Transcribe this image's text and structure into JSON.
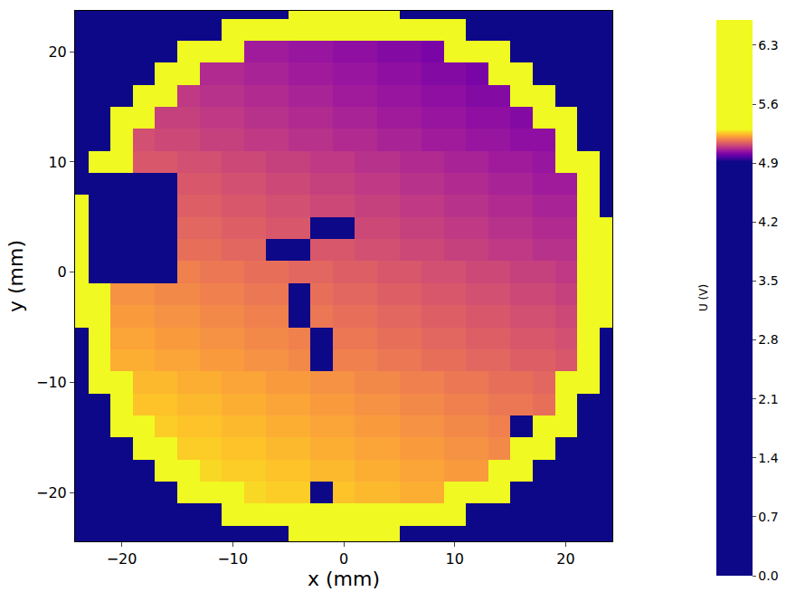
{
  "chart_data": {
    "type": "heatmap",
    "x_label": "x (mm)",
    "y_label": "y (mm)",
    "colorbar_label": "U (V)",
    "xlim": [
      -24.2,
      24.2
    ],
    "ylim": [
      -24.4,
      23.7
    ],
    "xticks": [
      -20,
      -10,
      0,
      10,
      20
    ],
    "yticks": [
      -20,
      -10,
      0,
      10,
      20
    ],
    "colorbar_range": [
      0,
      6.6
    ],
    "colorbar_ticks": [
      {
        "value": 0,
        "label": "0.0"
      },
      0.7,
      1.4,
      2.1,
      2.8,
      3.5,
      4.2,
      4.9,
      5.6,
      6.3
    ],
    "x": [
      -24,
      -22,
      -20,
      -18,
      -16,
      -14,
      -12,
      -10,
      -8,
      -6,
      -4,
      -2,
      0,
      2,
      4,
      6,
      8,
      10,
      12,
      14,
      16,
      18,
      20,
      22,
      24
    ],
    "y": [
      -24,
      -22,
      -20,
      -18,
      -16,
      -14,
      -12,
      -10,
      -8,
      -6,
      -4,
      -2,
      0,
      2,
      4,
      6,
      8,
      10,
      12,
      14,
      16,
      18,
      20,
      22,
      24
    ],
    "z": [
      [
        0,
        0,
        0,
        0,
        0,
        0,
        0,
        0,
        0,
        0,
        6,
        6,
        6,
        6,
        6,
        0,
        0,
        0,
        0,
        0,
        0,
        0,
        0,
        0,
        0
      ],
      [
        0,
        0,
        0,
        0,
        0,
        0,
        0,
        6,
        6,
        6,
        6,
        6,
        6,
        6,
        6,
        6,
        6,
        6,
        0,
        0,
        0,
        0,
        0,
        0,
        0
      ],
      [
        0,
        0,
        0,
        0,
        0,
        6,
        6,
        6,
        5.27,
        5.26,
        5.26,
        4.7,
        5.25,
        5.24,
        5.24,
        5.23,
        5.23,
        6,
        6,
        6,
        0,
        0,
        0,
        0,
        0
      ],
      [
        0,
        0,
        0,
        0,
        6,
        6,
        5.27,
        5.26,
        5.26,
        5.25,
        5.25,
        5.24,
        5.24,
        5.23,
        5.23,
        5.22,
        5.22,
        5.21,
        5.21,
        6,
        6,
        0,
        0,
        0,
        0
      ],
      [
        0,
        0,
        0,
        6,
        6,
        5.26,
        5.26,
        5.25,
        5.25,
        5.24,
        5.24,
        5.23,
        5.23,
        5.22,
        5.22,
        5.21,
        5.21,
        5.2,
        5.2,
        5.19,
        6,
        6,
        0,
        0,
        0
      ],
      [
        0,
        0,
        6,
        6,
        5.26,
        5.25,
        5.25,
        5.24,
        5.24,
        5.23,
        5.23,
        5.22,
        5.22,
        5.21,
        5.21,
        5.2,
        5.2,
        5.19,
        5.19,
        5.18,
        4.7,
        6,
        6,
        0,
        0
      ],
      [
        0,
        0,
        6,
        5.25,
        5.25,
        5.24,
        5.24,
        5.23,
        5.23,
        5.22,
        5.22,
        5.21,
        5.21,
        5.2,
        5.2,
        5.19,
        5.19,
        5.18,
        5.18,
        5.17,
        5.17,
        5.16,
        6,
        0,
        0
      ],
      [
        0,
        6,
        6,
        5.24,
        5.24,
        5.23,
        5.23,
        5.22,
        5.22,
        5.21,
        5.21,
        5.2,
        5.2,
        5.19,
        5.19,
        5.18,
        5.18,
        5.17,
        5.17,
        5.16,
        5.16,
        5.15,
        6,
        6,
        0
      ],
      [
        0,
        6,
        5.23,
        5.23,
        5.22,
        5.22,
        5.21,
        5.21,
        5.2,
        5.2,
        5.19,
        4.5,
        5.18,
        5.18,
        5.17,
        5.17,
        5.16,
        5.16,
        5.15,
        5.15,
        5.14,
        5.14,
        5.13,
        6,
        0
      ],
      [
        0,
        6,
        5.22,
        5.22,
        5.21,
        5.21,
        5.2,
        5.2,
        5.19,
        5.19,
        5.18,
        4.5,
        5.17,
        5.17,
        5.16,
        5.16,
        5.15,
        5.15,
        5.14,
        5.14,
        5.13,
        5.13,
        5.12,
        6,
        0
      ],
      [
        6,
        6,
        5.21,
        5.21,
        5.2,
        5.2,
        5.19,
        5.19,
        5.18,
        5.18,
        4.5,
        5.17,
        5.16,
        5.16,
        5.15,
        5.15,
        5.14,
        5.14,
        5.13,
        5.13,
        5.12,
        5.12,
        5.11,
        6,
        6
      ],
      [
        6,
        6,
        5.2,
        5.2,
        5.19,
        5.19,
        5.18,
        5.18,
        5.17,
        5.17,
        4.5,
        5.16,
        5.15,
        5.15,
        5.14,
        5.14,
        5.13,
        5.13,
        5.12,
        5.12,
        5.11,
        5.11,
        5.1,
        6,
        6
      ],
      [
        6,
        0.3,
        0.3,
        0.3,
        0.3,
        5.18,
        5.17,
        5.17,
        5.16,
        5.16,
        5.15,
        5.15,
        5.14,
        5.14,
        5.13,
        5.13,
        5.12,
        5.12,
        5.11,
        5.11,
        5.1,
        5.1,
        5.09,
        6,
        6
      ],
      [
        6,
        0.3,
        0.3,
        0.3,
        0.3,
        5.16,
        5.16,
        5.15,
        5.15,
        4.5,
        4.5,
        5.13,
        5.13,
        5.12,
        5.12,
        5.11,
        5.11,
        5.1,
        5.1,
        5.09,
        5.09,
        5.08,
        5.08,
        6,
        6
      ],
      [
        6,
        0.3,
        0.3,
        0.3,
        0.3,
        5.15,
        5.15,
        5.14,
        5.14,
        5.13,
        5.13,
        4.5,
        4.5,
        5.11,
        5.11,
        5.1,
        5.1,
        5.09,
        5.09,
        5.08,
        5.08,
        5.07,
        5.07,
        6,
        6
      ],
      [
        6,
        0.3,
        0.3,
        0.3,
        0.3,
        5.14,
        5.14,
        5.13,
        5.13,
        5.12,
        5.12,
        5.11,
        5.11,
        5.1,
        5.1,
        5.09,
        5.09,
        5.08,
        5.08,
        5.07,
        5.07,
        5.06,
        5.06,
        6,
        0
      ],
      [
        0,
        0.3,
        0.3,
        0.3,
        0.3,
        5.13,
        5.13,
        5.12,
        5.12,
        5.11,
        5.11,
        5.1,
        5.1,
        5.09,
        5.09,
        5.08,
        5.08,
        5.07,
        5.07,
        5.06,
        5.06,
        5.05,
        5.05,
        6,
        0
      ],
      [
        0,
        6,
        6,
        5.13,
        5.13,
        5.12,
        5.12,
        5.11,
        5.11,
        5.1,
        5.1,
        5.09,
        5.09,
        5.08,
        5.08,
        5.07,
        5.07,
        5.06,
        5.06,
        5.05,
        5.05,
        5.04,
        6,
        6,
        0
      ],
      [
        0,
        0,
        6,
        5.12,
        5.11,
        5.11,
        5.1,
        5.1,
        5.09,
        5.09,
        5.08,
        5.08,
        5.07,
        5.07,
        5.06,
        5.06,
        5.05,
        5.05,
        5.04,
        5.04,
        5.03,
        5.03,
        6,
        0,
        0
      ],
      [
        0,
        0,
        6,
        6,
        5.1,
        5.1,
        5.09,
        5.09,
        5.08,
        5.08,
        5.07,
        5.07,
        5.06,
        5.06,
        5.05,
        5.05,
        5.04,
        5.04,
        5.03,
        5.03,
        5.02,
        6,
        6,
        0,
        0
      ],
      [
        0,
        0,
        0,
        6,
        6,
        5.09,
        5.08,
        5.08,
        5.07,
        5.07,
        5.06,
        5.06,
        5.05,
        5.05,
        5.04,
        5.04,
        5.03,
        5.03,
        5.02,
        5.02,
        6,
        6,
        0,
        0,
        0
      ],
      [
        0,
        0,
        0,
        0,
        6,
        6,
        5.07,
        5.07,
        5.06,
        5.06,
        5.05,
        5.05,
        5.04,
        5.04,
        5.03,
        5.03,
        5.02,
        5.02,
        5.01,
        6,
        6,
        0,
        0,
        0,
        0
      ],
      [
        0,
        0,
        0,
        0,
        0,
        6,
        6,
        6,
        5.05,
        5.05,
        5.04,
        5.04,
        5.03,
        5.03,
        5.02,
        5.02,
        5.01,
        6,
        6,
        6,
        0,
        0,
        0,
        0,
        0
      ],
      [
        0,
        0,
        0,
        0,
        0,
        0,
        0,
        6,
        6,
        6,
        6,
        6,
        6,
        6,
        6,
        6,
        6,
        6,
        0,
        0,
        0,
        0,
        0,
        0,
        0
      ],
      [
        0,
        0,
        0,
        0,
        0,
        0,
        0,
        0,
        0,
        0,
        6,
        6,
        6,
        6,
        6,
        0,
        0,
        0,
        0,
        0,
        0,
        0,
        0,
        0,
        0
      ]
    ]
  }
}
